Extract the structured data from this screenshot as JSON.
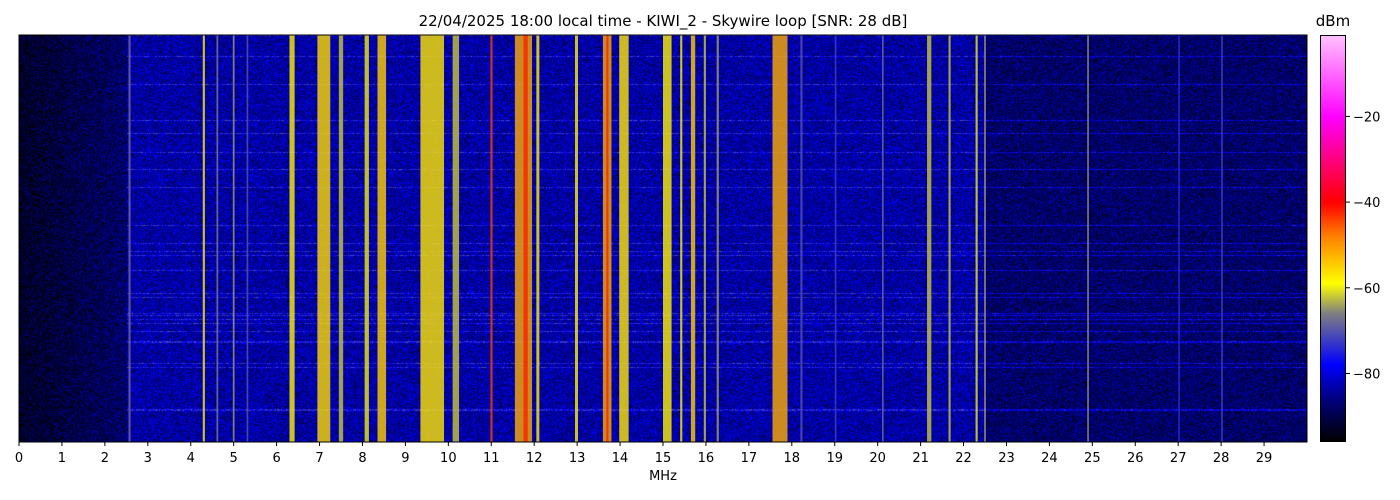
{
  "chart_data": {
    "type": "heatmap",
    "title": "22/04/2025 18:00 local time - KIWI_2 - Skywire loop [SNR: 28 dB]",
    "xlabel": "MHz",
    "ylabel": "",
    "xlim": [
      0,
      30
    ],
    "x_ticks": [
      "0",
      "1",
      "2",
      "3",
      "4",
      "5",
      "6",
      "7",
      "8",
      "9",
      "10",
      "11",
      "12",
      "13",
      "14",
      "15",
      "16",
      "17",
      "18",
      "19",
      "20",
      "21",
      "22",
      "23",
      "24",
      "25",
      "26",
      "27",
      "28",
      "29"
    ],
    "colorbar": {
      "label": "dBm",
      "range": [
        -96,
        -1
      ],
      "ticks": [
        "−20",
        "−40",
        "−60",
        "−80"
      ],
      "tick_values": [
        -20,
        -40,
        -60,
        -80
      ],
      "colormap": [
        {
          "value": -96,
          "color": "#000000"
        },
        {
          "value": -86,
          "color": "#000080"
        },
        {
          "value": -78,
          "color": "#0000ff"
        },
        {
          "value": -66,
          "color": "#808080"
        },
        {
          "value": -59,
          "color": "#ffff00"
        },
        {
          "value": -48,
          "color": "#ff8000"
        },
        {
          "value": -40,
          "color": "#ff0000"
        },
        {
          "value": -20,
          "color": "#ff00ff"
        },
        {
          "value": -1,
          "color": "#ffc0ff"
        }
      ]
    },
    "noise_floor_dbm": {
      "below_2.5MHz": -93,
      "above_2.5MHz": -84,
      "above_22.5MHz": -88
    },
    "signals": [
      {
        "from": 2.55,
        "to": 2.6,
        "dbm": -68
      },
      {
        "from": 4.28,
        "to": 4.33,
        "dbm": -58
      },
      {
        "from": 4.6,
        "to": 4.64,
        "dbm": -66
      },
      {
        "from": 4.98,
        "to": 5.02,
        "dbm": -64
      },
      {
        "from": 5.3,
        "to": 5.34,
        "dbm": -70
      },
      {
        "from": 6.3,
        "to": 6.42,
        "dbm": -58
      },
      {
        "from": 6.95,
        "to": 7.25,
        "dbm": -56
      },
      {
        "from": 7.45,
        "to": 7.55,
        "dbm": -62
      },
      {
        "from": 8.05,
        "to": 8.15,
        "dbm": -60
      },
      {
        "from": 8.35,
        "to": 8.55,
        "dbm": -55
      },
      {
        "from": 9.35,
        "to": 9.9,
        "dbm": -57
      },
      {
        "from": 10.1,
        "to": 10.25,
        "dbm": -62
      },
      {
        "from": 10.98,
        "to": 11.03,
        "dbm": -44
      },
      {
        "from": 11.55,
        "to": 11.95,
        "dbm": -52
      },
      {
        "from": 11.75,
        "to": 11.85,
        "dbm": -42
      },
      {
        "from": 12.05,
        "to": 12.12,
        "dbm": -58
      },
      {
        "from": 12.95,
        "to": 13.02,
        "dbm": -58
      },
      {
        "from": 13.6,
        "to": 13.8,
        "dbm": -52
      },
      {
        "from": 13.68,
        "to": 13.73,
        "dbm": -42
      },
      {
        "from": 13.98,
        "to": 14.2,
        "dbm": -57
      },
      {
        "from": 15.0,
        "to": 15.2,
        "dbm": -58
      },
      {
        "from": 15.4,
        "to": 15.45,
        "dbm": -58
      },
      {
        "from": 15.65,
        "to": 15.75,
        "dbm": -55
      },
      {
        "from": 15.95,
        "to": 16.0,
        "dbm": -62
      },
      {
        "from": 16.25,
        "to": 16.3,
        "dbm": -64
      },
      {
        "from": 17.55,
        "to": 17.9,
        "dbm": -52
      },
      {
        "from": 18.2,
        "to": 18.25,
        "dbm": -70
      },
      {
        "from": 19.0,
        "to": 19.04,
        "dbm": -72
      },
      {
        "from": 20.1,
        "to": 20.14,
        "dbm": -68
      },
      {
        "from": 21.15,
        "to": 21.25,
        "dbm": -62
      },
      {
        "from": 21.65,
        "to": 21.7,
        "dbm": -62
      },
      {
        "from": 22.28,
        "to": 22.33,
        "dbm": -60
      },
      {
        "from": 22.48,
        "to": 22.52,
        "dbm": -64
      },
      {
        "from": 24.88,
        "to": 24.92,
        "dbm": -65
      },
      {
        "from": 27.0,
        "to": 27.04,
        "dbm": -74
      },
      {
        "from": 28.0,
        "to": 28.04,
        "dbm": -72
      }
    ]
  }
}
